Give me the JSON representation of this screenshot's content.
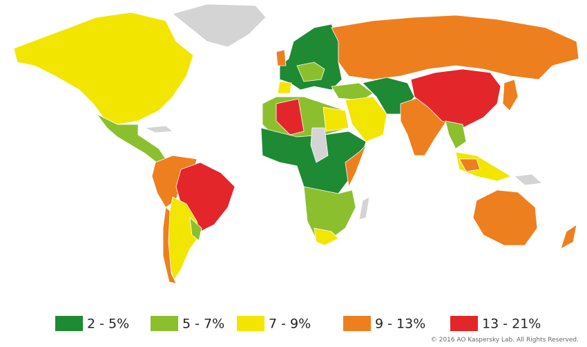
{
  "legend": {
    "items": [
      {
        "label": "2 - 5%",
        "color": "#1e8a34"
      },
      {
        "label": "5 - 7%",
        "color": "#8cbf2e"
      },
      {
        "label": "7 - 9%",
        "color": "#f2e600"
      },
      {
        "label": "9 - 13%",
        "color": "#ee7f1e"
      },
      {
        "label": "13 - 21%",
        "color": "#e3262a"
      }
    ]
  },
  "footer": {
    "copyright": "© 2016 AO Kaspersky Lab. All Rights Reserved."
  }
}
